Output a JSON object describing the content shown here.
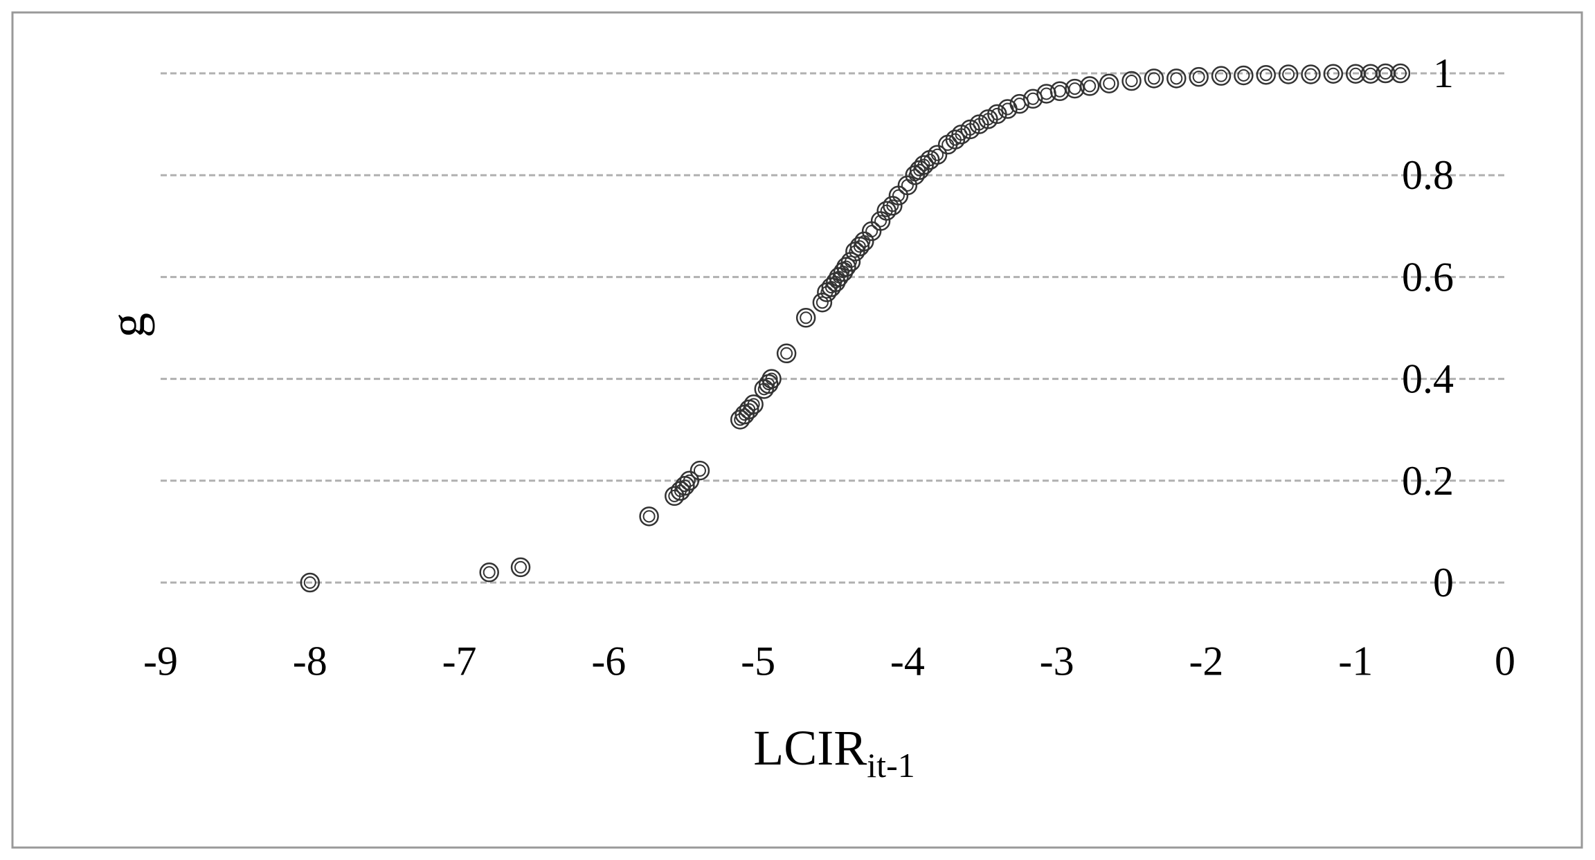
{
  "chart_data": {
    "type": "scatter",
    "x_label": "LCIR",
    "x_label_sub": "it-1",
    "y_label": "g",
    "x": [
      -8.0,
      -6.8,
      -6.59,
      -5.73,
      -5.56,
      -5.52,
      -5.49,
      -5.46,
      -5.39,
      -5.12,
      -5.09,
      -5.06,
      -5.03,
      -4.96,
      -4.93,
      -4.91,
      -4.81,
      -4.68,
      -4.57,
      -4.54,
      -4.51,
      -4.48,
      -4.46,
      -4.43,
      -4.41,
      -4.38,
      -4.35,
      -4.32,
      -4.29,
      -4.24,
      -4.18,
      -4.14,
      -4.1,
      -4.06,
      -4.0,
      -3.95,
      -3.92,
      -3.89,
      -3.85,
      -3.8,
      -3.73,
      -3.68,
      -3.64,
      -3.58,
      -3.52,
      -3.46,
      -3.4,
      -3.33,
      -3.25,
      -3.16,
      -3.07,
      -2.98,
      -2.88,
      -2.78,
      -2.65,
      -2.5,
      -2.35,
      -2.2,
      -2.05,
      -1.9,
      -1.75,
      -1.6,
      -1.45,
      -1.3,
      -1.15,
      -1.0,
      -0.9,
      -0.8,
      -0.7
    ],
    "values": [
      0.0,
      0.02,
      0.03,
      0.13,
      0.17,
      0.18,
      0.19,
      0.2,
      0.22,
      0.32,
      0.33,
      0.34,
      0.35,
      0.38,
      0.39,
      0.4,
      0.45,
      0.52,
      0.55,
      0.57,
      0.58,
      0.59,
      0.6,
      0.61,
      0.62,
      0.63,
      0.65,
      0.66,
      0.67,
      0.69,
      0.71,
      0.73,
      0.74,
      0.76,
      0.78,
      0.8,
      0.81,
      0.82,
      0.83,
      0.84,
      0.86,
      0.87,
      0.88,
      0.89,
      0.9,
      0.91,
      0.92,
      0.93,
      0.94,
      0.95,
      0.96,
      0.965,
      0.97,
      0.975,
      0.98,
      0.985,
      0.99,
      0.99,
      0.993,
      0.995,
      0.996,
      0.997,
      0.998,
      0.998,
      0.999,
      0.999,
      0.999,
      1.0,
      1.0
    ],
    "color": "#333333",
    "xlim": [
      -9,
      0
    ],
    "xticks": [
      -9,
      -8,
      -7,
      -6,
      -5,
      -4,
      -3,
      -2,
      -1,
      0
    ],
    "ylim": [
      -0.1,
      1
    ],
    "yticks": [
      0,
      0.2,
      0.4,
      0.6,
      0.8,
      1
    ],
    "grid": true
  }
}
